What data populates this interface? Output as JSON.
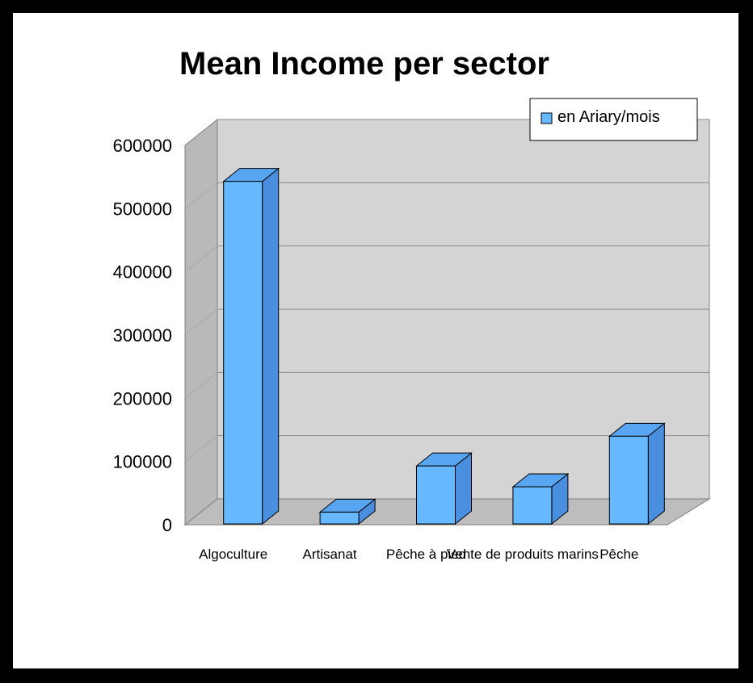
{
  "chart_data": {
    "type": "bar",
    "title": "Mean Income per sector",
    "categories": [
      "Algoculture",
      "Artisanat",
      "Pêche à pied",
      "Vente de produits marins",
      "Pêche"
    ],
    "series": [
      {
        "name": "en Ariary/mois",
        "values": [
          543000,
          20000,
          93000,
          60000,
          140000
        ]
      }
    ],
    "xlabel": "",
    "ylabel": "",
    "ylim": [
      0,
      600000
    ],
    "yticks": [
      "0",
      "100000",
      "200000",
      "300000",
      "400000",
      "500000",
      "600000"
    ],
    "grid": true,
    "legend": "top-right",
    "colors": {
      "bar_front": "#66b8ff",
      "bar_side": "#4a8ee0",
      "bar_top": "#58a6f2",
      "wall": "#d4d4d4",
      "floor": "#bdbdbd",
      "side_wall": "#b9b9b9"
    }
  }
}
